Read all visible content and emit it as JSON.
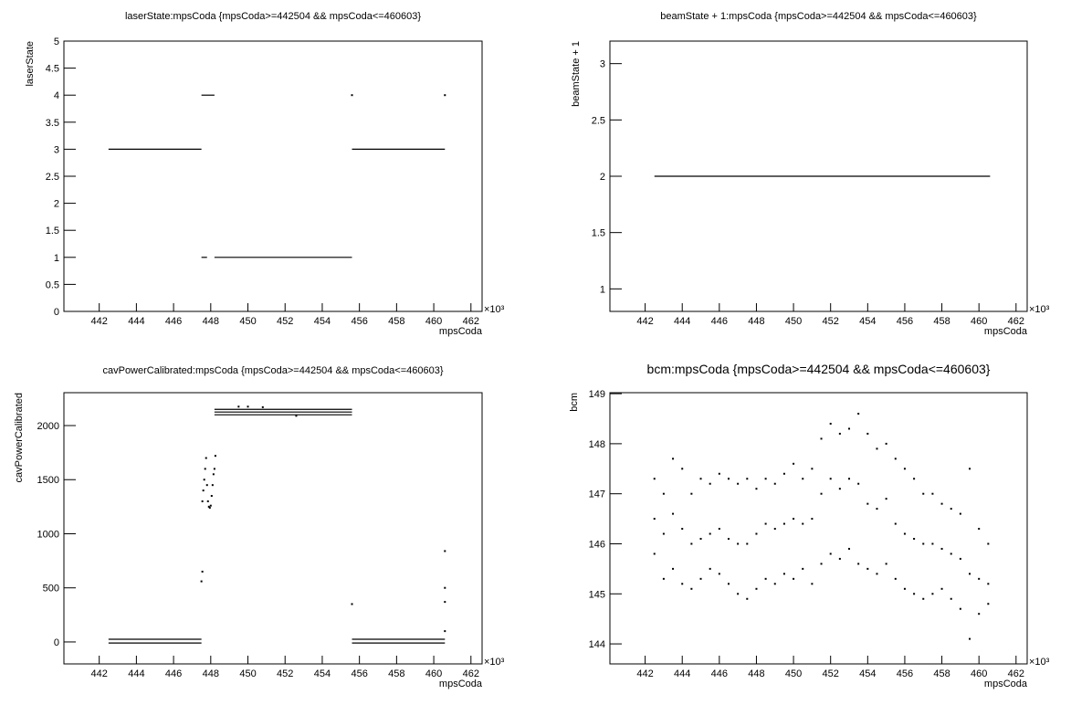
{
  "chart_data": [
    {
      "type": "line",
      "title": "laserState:mpsCoda {mpsCoda>=442504 && mpsCoda<=460603}",
      "xlabel": "mpsCoda",
      "ylabel": "laserState",
      "x_exponent": "×10³",
      "xlim": [
        440.1,
        462.6
      ],
      "xticks": [
        442,
        444,
        446,
        448,
        450,
        452,
        454,
        456,
        458,
        460,
        462
      ],
      "ylim": [
        0,
        5
      ],
      "yticks": [
        0,
        0.5,
        1,
        1.5,
        2,
        2.5,
        3,
        3.5,
        4,
        4.5,
        5
      ],
      "series": [
        {
          "color": "#000000",
          "x": [
            442.5,
            447.5,
            null,
            447.5,
            448.2,
            null,
            447.5,
            447.8,
            null,
            448.2,
            455.6,
            null,
            455.6,
            460.6,
            null,
            455.6,
            null,
            460.6
          ],
          "values": [
            3,
            3,
            null,
            4,
            4,
            null,
            1,
            1,
            null,
            1,
            1,
            null,
            3,
            3,
            null,
            4,
            null,
            4
          ]
        }
      ]
    },
    {
      "type": "line",
      "title": "beamState + 1:mpsCoda {mpsCoda>=442504 && mpsCoda<=460603}",
      "xlabel": "mpsCoda",
      "ylabel": "beamState + 1",
      "x_exponent": "×10³",
      "xlim": [
        440.1,
        462.6
      ],
      "xticks": [
        442,
        444,
        446,
        448,
        450,
        452,
        454,
        456,
        458,
        460,
        462
      ],
      "ylim": [
        0.8,
        3.2
      ],
      "yticks": [
        1,
        1.5,
        2,
        2.5,
        3
      ],
      "series": [
        {
          "color": "#000000",
          "x": [
            442.5,
            460.6
          ],
          "values": [
            2,
            2
          ]
        }
      ]
    },
    {
      "type": "scatter",
      "title": "cavPowerCalibrated:mpsCoda {mpsCoda>=442504 && mpsCoda<=460603}",
      "xlabel": "mpsCoda",
      "ylabel": "cavPowerCalibrated",
      "x_exponent": "×10³",
      "xlim": [
        440.1,
        462.6
      ],
      "xticks": [
        442,
        444,
        446,
        448,
        450,
        452,
        454,
        456,
        458,
        460,
        462
      ],
      "ylim": [
        -203,
        2304
      ],
      "yticks": [
        0,
        500,
        1000,
        1500,
        2000
      ],
      "series": [
        {
          "color": "#000000",
          "line": true,
          "x": [
            442.5,
            447.5,
            null,
            442.5,
            447.5,
            null,
            448.2,
            455.6,
            null,
            448.2,
            455.6,
            null,
            448.2,
            455.6,
            null,
            455.6,
            460.6,
            null,
            455.6,
            460.6
          ],
          "values": [
            25,
            25,
            null,
            -10,
            -10,
            null,
            2150,
            2150,
            null,
            2125,
            2125,
            null,
            2100,
            2100,
            null,
            25,
            25,
            null,
            -10,
            -10
          ]
        },
        {
          "color": "#000000",
          "x": [
            447.55,
            447.6,
            447.65,
            447.7,
            447.75,
            447.8,
            447.85,
            447.9,
            447.95,
            448.0,
            448.05,
            448.1,
            448.15,
            448.2,
            448.25,
            447.55,
            447.5,
            455.6,
            460.6,
            460.6,
            460.6,
            460.6,
            449.5,
            450.0,
            450.8,
            452.6
          ],
          "values": [
            1300,
            1400,
            1500,
            1600,
            1700,
            1450,
            1300,
            1250,
            1240,
            1260,
            1350,
            1450,
            1550,
            1600,
            1720,
            650,
            560,
            350,
            840,
            500,
            370,
            100,
            2175,
            2175,
            2170,
            2090
          ]
        }
      ]
    },
    {
      "type": "scatter",
      "title": "bcm:mpsCoda {mpsCoda>=442504 && mpsCoda<=460603}",
      "xlabel": "mpsCoda",
      "ylabel": "bcm",
      "x_exponent": "×10³",
      "xlim": [
        440.1,
        462.6
      ],
      "xticks": [
        442,
        444,
        446,
        448,
        450,
        452,
        454,
        456,
        458,
        460,
        462
      ],
      "ylim": [
        143.6,
        149.02
      ],
      "yticks": [
        144,
        145,
        146,
        147,
        148,
        149
      ],
      "x": [
        442.5,
        443,
        443.5,
        444,
        444.5,
        445,
        445.5,
        446,
        446.5,
        447,
        447.5,
        448,
        448.5,
        449,
        449.5,
        450,
        450.5,
        451,
        451.5,
        452,
        452.5,
        453,
        453.5,
        454,
        454.5,
        455,
        455.5,
        456,
        456.5,
        457,
        457.5,
        458,
        458.5,
        459,
        459.5,
        460,
        460.5
      ],
      "series": [
        {
          "color": "#000000",
          "values": [
            147.3,
            147.0,
            147.7,
            147.5,
            147.0,
            147.3,
            147.2,
            147.4,
            147.3,
            147.2,
            147.3,
            147.1,
            147.3,
            147.2,
            147.4,
            147.6,
            147.3,
            147.5,
            148.1,
            148.4,
            148.2,
            148.3,
            148.6,
            148.2,
            147.9,
            148.0,
            147.7,
            147.5,
            147.3,
            147.0,
            147.0,
            146.8,
            146.7,
            146.6,
            147.5,
            146.3,
            146.0
          ]
        },
        {
          "color": "#000000",
          "values": [
            146.5,
            146.2,
            146.6,
            146.3,
            146.0,
            146.1,
            146.2,
            146.3,
            146.1,
            146.0,
            146.0,
            146.2,
            146.4,
            146.3,
            146.4,
            146.5,
            146.4,
            146.5,
            147.0,
            147.3,
            147.1,
            147.3,
            147.2,
            146.8,
            146.7,
            146.9,
            146.4,
            146.2,
            146.1,
            146.0,
            146.0,
            145.9,
            145.8,
            145.7,
            145.4,
            145.3,
            145.2
          ]
        },
        {
          "color": "#000000",
          "values": [
            145.8,
            145.3,
            145.5,
            145.2,
            145.1,
            145.3,
            145.5,
            145.4,
            145.2,
            145.0,
            144.9,
            145.1,
            145.3,
            145.2,
            145.4,
            145.3,
            145.5,
            145.2,
            145.6,
            145.8,
            145.7,
            145.9,
            145.6,
            145.5,
            145.4,
            145.6,
            145.3,
            145.1,
            145.0,
            144.9,
            145.0,
            145.1,
            144.9,
            144.7,
            144.1,
            144.6,
            144.8
          ]
        }
      ]
    }
  ]
}
